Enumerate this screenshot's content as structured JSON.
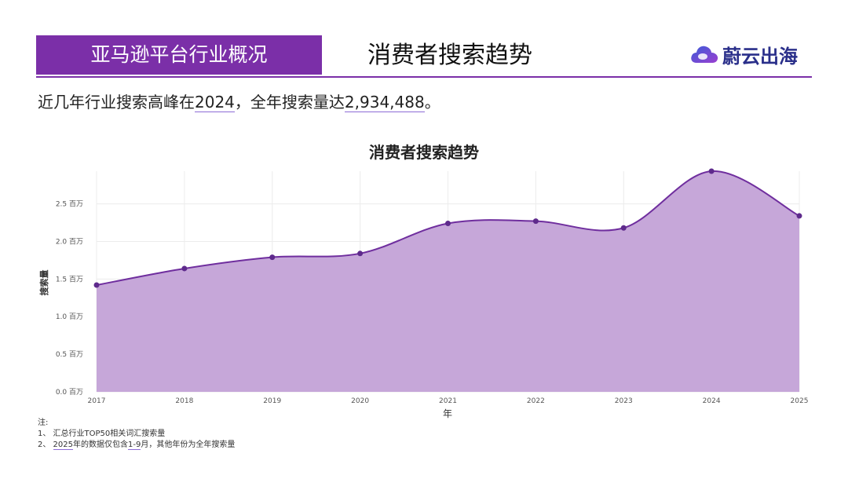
{
  "header": {
    "tab_label": "亚马逊平台行业概况",
    "title": "消费者搜索趋势",
    "logo_text": "蔚云出海"
  },
  "summary": {
    "prefix": "近几年行业搜索高峰在",
    "peak_year": "2024",
    "middle": "，全年搜索量达",
    "peak_value": "2,934,488",
    "suffix": "。"
  },
  "chart_data": {
    "type": "area",
    "title": "消费者搜索趋势",
    "xlabel": "年",
    "ylabel": "搜索量",
    "x": [
      "2017",
      "2018",
      "2019",
      "2020",
      "2021",
      "2022",
      "2023",
      "2024",
      "2025"
    ],
    "series": [
      {
        "values": [
          1420000,
          1640000,
          1790000,
          1840000,
          2240000,
          2270000,
          2180000,
          2934488,
          2340000
        ]
      }
    ],
    "ylim": [
      0,
      2934488
    ],
    "yticks": [
      {
        "value": 0,
        "label": "0.0 百万"
      },
      {
        "value": 500000,
        "label": "0.5 百万"
      },
      {
        "value": 1000000,
        "label": "1.0 百万"
      },
      {
        "value": 1500000,
        "label": "1.5 百万"
      },
      {
        "value": 2000000,
        "label": "2.0 百万"
      },
      {
        "value": 2500000,
        "label": "2.5 百万"
      }
    ],
    "grid": true,
    "colors": {
      "fill": "#c6a7d9",
      "line": "#6f2e9e",
      "marker": "#5e2a8c"
    }
  },
  "notes": {
    "heading": "注:",
    "line1": "1、 汇总行业TOP50相关词汇搜索量",
    "line2_prefix": "2、 ",
    "line2_year": "2025",
    "line2_mid": "年的数据仅包含",
    "line2_range": "1-9",
    "line2_suffix": "月，其他年份为全年搜索量"
  },
  "colors": {
    "brand": "#7b2fa8",
    "logo_text": "#2a2f8a"
  }
}
